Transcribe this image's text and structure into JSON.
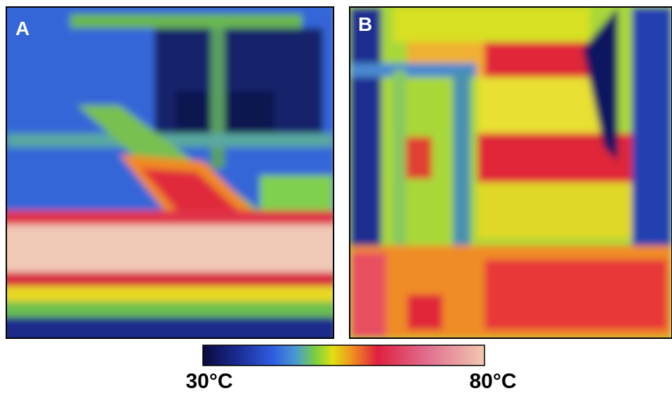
{
  "panels": [
    {
      "label": "A"
    },
    {
      "label": "B"
    }
  ],
  "colorbar": {
    "min_label": "30°C",
    "max_label": "80°C"
  }
}
